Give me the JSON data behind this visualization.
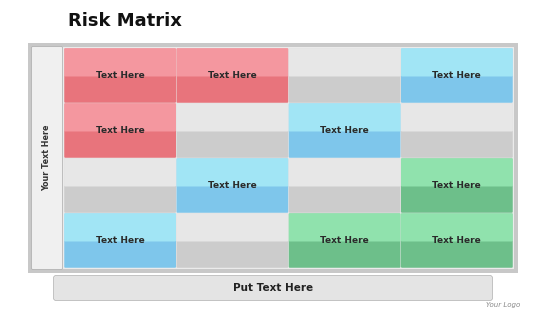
{
  "title": "Risk Matrix",
  "title_fontsize": 13,
  "title_fontweight": "bold",
  "grid_rows": 4,
  "grid_cols": 4,
  "cell_text": [
    [
      "Text Here",
      "Text Here",
      "",
      "Text Here"
    ],
    [
      "Text Here",
      "",
      "Text Here",
      ""
    ],
    [
      "",
      "Text Here",
      "",
      "Text Here"
    ],
    [
      "Text Here",
      "",
      "Text Here",
      "Text Here"
    ]
  ],
  "cell_colors": [
    [
      "#e8747c",
      "#e8747c",
      "#cccccc",
      "#7ec6eb"
    ],
    [
      "#e8747c",
      "#cccccc",
      "#7ec6eb",
      "#cccccc"
    ],
    [
      "#cccccc",
      "#7ec6eb",
      "#cccccc",
      "#6dbf8a"
    ],
    [
      "#7ec6eb",
      "#cccccc",
      "#6dbf8a",
      "#6dbf8a"
    ]
  ],
  "cell_text_color": "#2a2a2a",
  "cell_text_fontsize": 6.5,
  "cell_text_fontweight": "bold",
  "sidebar_text": "Your Text Here",
  "bottom_bar_text": "Put Text Here",
  "logo_text": "Your Logo",
  "outer_border_color": "#b0b0b0",
  "outer_bg": "#d8d8d8",
  "inner_bg": "#f0f0f0",
  "sidebar_bg": "#f0f0f0",
  "sidebar_border": "#aaaaaa",
  "bottom_bar_bg": "#e4e4e4",
  "bottom_bar_border": "#b0b0b0"
}
